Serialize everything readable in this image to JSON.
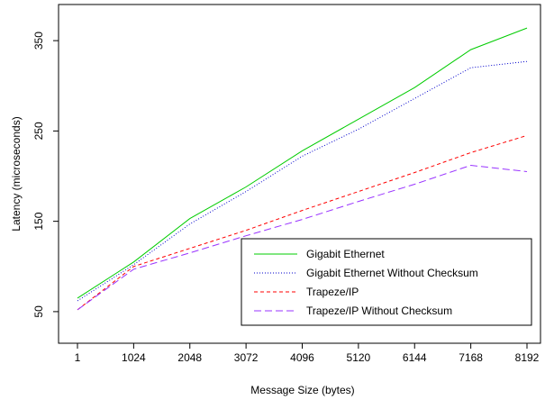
{
  "chart_data": {
    "type": "line",
    "xlabel": "Message Size (bytes)",
    "ylabel": "Latency (microseconds)",
    "categories": [
      "1",
      "1024",
      "2048",
      "3072",
      "4096",
      "5120",
      "6144",
      "7168",
      "8192"
    ],
    "y_ticks": [
      50,
      150,
      250,
      350
    ],
    "ylim": [
      15,
      390
    ],
    "grid": false,
    "legend_position": "bottom-right",
    "series": [
      {
        "name": "Gigabit Ethernet",
        "color": "#00cc00",
        "dash": "solid",
        "values": [
          65,
          105,
          153,
          188,
          228,
          263,
          298,
          340,
          364
        ]
      },
      {
        "name": "Gigabit Ethernet Without Checksum",
        "color": "#0000cc",
        "dash": "dotted",
        "values": [
          62,
          102,
          147,
          183,
          222,
          252,
          286,
          320,
          327
        ]
      },
      {
        "name": "Trapeze/IP",
        "color": "#ff0000",
        "dash": "dashed",
        "values": [
          52,
          100,
          120,
          140,
          162,
          183,
          204,
          226,
          245
        ]
      },
      {
        "name": "Trapeze/IP Without Checksum",
        "color": "#9933ff",
        "dash": "longdash",
        "values": [
          52,
          97,
          115,
          134,
          152,
          172,
          191,
          212,
          205
        ]
      }
    ]
  }
}
